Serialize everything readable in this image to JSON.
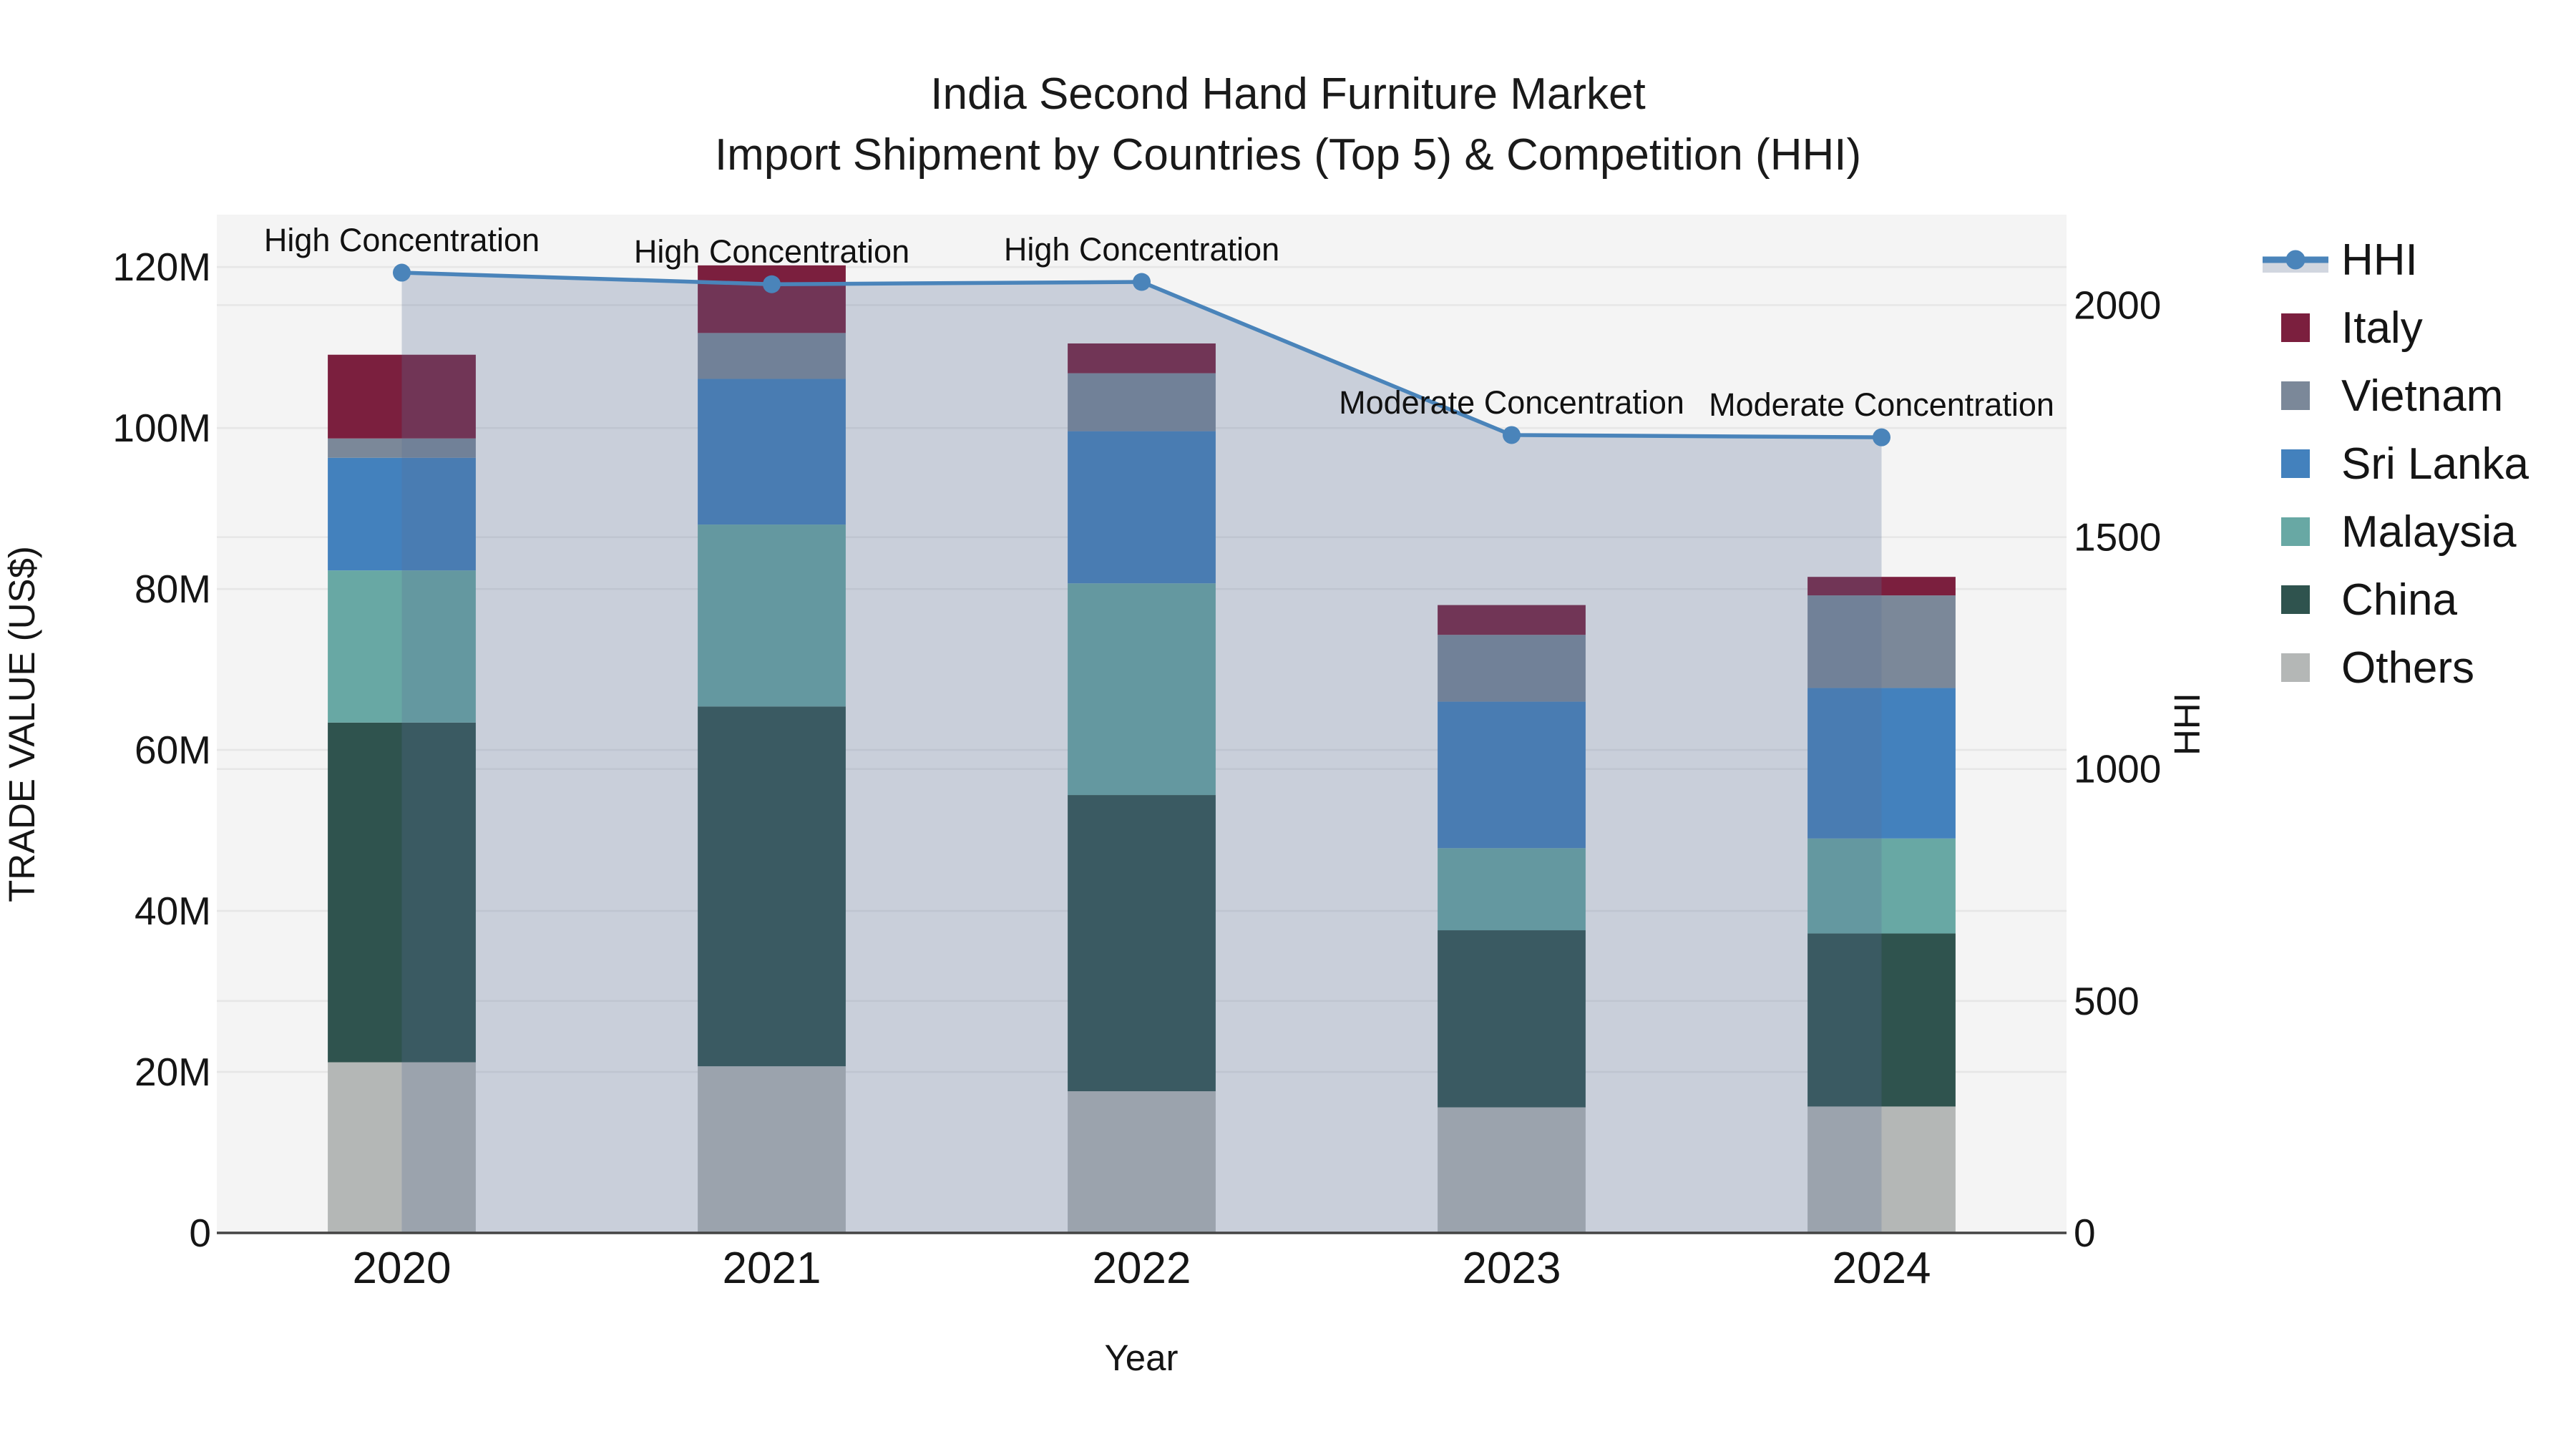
{
  "chart_data": {
    "type": "bar+line",
    "title": "India Second Hand Furniture Market",
    "subtitle": "Import Shipment by Countries (Top 5) & Competition (HHI)",
    "xlabel": "Year",
    "categories": [
      "2020",
      "2021",
      "2022",
      "2023",
      "2024"
    ],
    "y_left": {
      "label": "TRADE VALUE (US$)",
      "unit": "M US$",
      "max": 126.5,
      "ticks": [
        0,
        20,
        40,
        60,
        80,
        100,
        120
      ],
      "tick_labels": [
        "0",
        "20M",
        "40M",
        "60M",
        "80M",
        "100M",
        "120M"
      ]
    },
    "y_right": {
      "label": "HHI",
      "max": 2195,
      "ticks": [
        0,
        500,
        1000,
        1500,
        2000
      ],
      "tick_labels": [
        "0",
        "500",
        "1000",
        "1500",
        "2000"
      ]
    },
    "series": [
      {
        "name": "Others",
        "color": "#b4b7b6",
        "values": [
          21.2,
          20.7,
          17.6,
          15.6,
          15.7
        ]
      },
      {
        "name": "China",
        "color": "#2f534e",
        "values": [
          42.2,
          44.7,
          36.8,
          22.0,
          21.5
        ]
      },
      {
        "name": "Malaysia",
        "color": "#68a8a4",
        "values": [
          18.9,
          22.6,
          26.3,
          10.2,
          11.8
        ]
      },
      {
        "name": "Sri Lanka",
        "color": "#4381bd",
        "values": [
          14.0,
          18.1,
          18.9,
          18.2,
          18.7
        ]
      },
      {
        "name": "Vietnam",
        "color": "#7b8899",
        "values": [
          2.4,
          5.7,
          7.2,
          8.3,
          11.5
        ]
      },
      {
        "name": "Italy",
        "color": "#7b1f3e",
        "values": [
          10.4,
          8.4,
          3.7,
          3.7,
          2.3
        ]
      }
    ],
    "stack_totals": [
      109.1,
      120.2,
      110.5,
      78.0,
      81.5
    ],
    "hhi": {
      "name": "HHI",
      "values": [
        2070,
        2045,
        2050,
        1720,
        1715
      ],
      "line_color": "#4a84ba",
      "marker_color": "#4a84ba",
      "area_fill": "rgba(90,110,150,0.28)",
      "legend_band_color": "#d1d6df"
    },
    "annotations": [
      {
        "year": "2020",
        "text": "High Concentration"
      },
      {
        "year": "2021",
        "text": "High Concentration"
      },
      {
        "year": "2022",
        "text": "High Concentration"
      },
      {
        "year": "2023",
        "text": "Moderate Concentration"
      },
      {
        "year": "2024",
        "text": "Moderate Concentration"
      }
    ],
    "legend_order": [
      "HHI",
      "Italy",
      "Vietnam",
      "Sri Lanka",
      "Malaysia",
      "China",
      "Others"
    ],
    "legend_position": "right",
    "grid": true,
    "plot_bg": "#f4f4f4",
    "grid_color": "#e6e6e6",
    "axis_line_color": "#444444"
  }
}
